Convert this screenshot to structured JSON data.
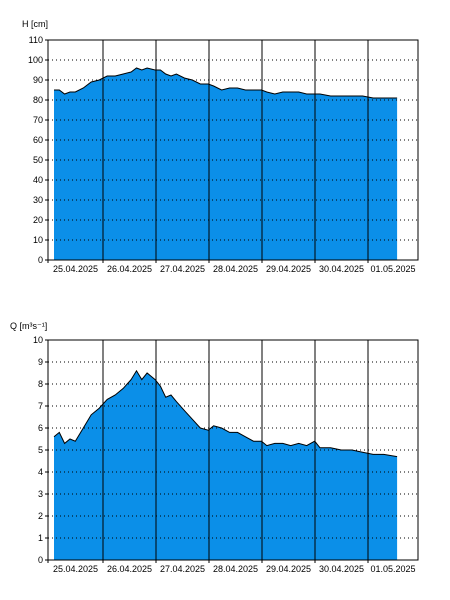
{
  "colors": {
    "fill": "#0b8fe8",
    "outline": "#000000",
    "grid_dotted": "#000000",
    "grid_solid": "#000000",
    "background": "#ffffff"
  },
  "chart_data": [
    {
      "type": "area",
      "ylabel": "H [cm]",
      "ylim": [
        0,
        110
      ],
      "yticks": [
        0,
        10,
        20,
        30,
        40,
        50,
        60,
        70,
        80,
        90,
        100,
        110
      ],
      "horizontal_grid": "dotted",
      "vertical_grid": "solid at day boundaries",
      "xticks": [
        "25.04.2025",
        "26.04.2025",
        "27.04.2025",
        "28.04.2025",
        "29.04.2025",
        "30.04.2025",
        "01.05.2025"
      ],
      "x_unit": "days since start of 25.04.2025",
      "x": [
        0.0,
        0.1,
        0.2,
        0.3,
        0.4,
        0.55,
        0.7,
        0.85,
        1.0,
        1.15,
        1.3,
        1.45,
        1.55,
        1.65,
        1.75,
        1.9,
        2.0,
        2.1,
        2.2,
        2.3,
        2.45,
        2.6,
        2.75,
        2.9,
        3.0,
        3.15,
        3.3,
        3.45,
        3.6,
        3.75,
        3.9,
        4.0,
        4.15,
        4.3,
        4.45,
        4.6,
        4.75,
        4.9,
        5.0,
        5.2,
        5.4,
        5.6,
        5.8,
        6.0,
        6.2,
        6.45
      ],
      "values": [
        85,
        85,
        83,
        84,
        84,
        86,
        89,
        90,
        92,
        92,
        93,
        94,
        96,
        95,
        96,
        95,
        95,
        93,
        92,
        93,
        91,
        90,
        88,
        88,
        87,
        85,
        86,
        86,
        85,
        85,
        85,
        84,
        83,
        84,
        84,
        84,
        83,
        83,
        83,
        82,
        82,
        82,
        82,
        81,
        81,
        81
      ]
    },
    {
      "type": "area",
      "ylabel": "Q [m³s⁻¹]",
      "ylim": [
        0,
        10
      ],
      "yticks": [
        0,
        1,
        2,
        3,
        4,
        5,
        6,
        7,
        8,
        9,
        10
      ],
      "horizontal_grid": "dotted",
      "vertical_grid": "solid at day boundaries",
      "xticks": [
        "25.04.2025",
        "26.04.2025",
        "27.04.2025",
        "28.04.2025",
        "29.04.2025",
        "30.04.2025",
        "01.05.2025"
      ],
      "x_unit": "days since start of 25.04.2025",
      "x": [
        0.0,
        0.1,
        0.2,
        0.3,
        0.4,
        0.55,
        0.7,
        0.85,
        1.0,
        1.15,
        1.3,
        1.45,
        1.55,
        1.65,
        1.75,
        1.9,
        2.0,
        2.1,
        2.2,
        2.3,
        2.45,
        2.6,
        2.75,
        2.9,
        3.0,
        3.15,
        3.3,
        3.45,
        3.6,
        3.75,
        3.9,
        4.0,
        4.15,
        4.3,
        4.45,
        4.6,
        4.75,
        4.9,
        5.0,
        5.2,
        5.4,
        5.6,
        5.8,
        6.0,
        6.2,
        6.45
      ],
      "values": [
        5.6,
        5.8,
        5.3,
        5.5,
        5.4,
        6.0,
        6.6,
        6.9,
        7.3,
        7.5,
        7.8,
        8.2,
        8.6,
        8.2,
        8.5,
        8.2,
        7.9,
        7.4,
        7.5,
        7.2,
        6.8,
        6.4,
        6.0,
        5.9,
        6.1,
        6.0,
        5.8,
        5.8,
        5.6,
        5.4,
        5.4,
        5.2,
        5.3,
        5.3,
        5.2,
        5.3,
        5.2,
        5.4,
        5.1,
        5.1,
        5.0,
        5.0,
        4.9,
        4.8,
        4.8,
        4.7
      ]
    }
  ]
}
